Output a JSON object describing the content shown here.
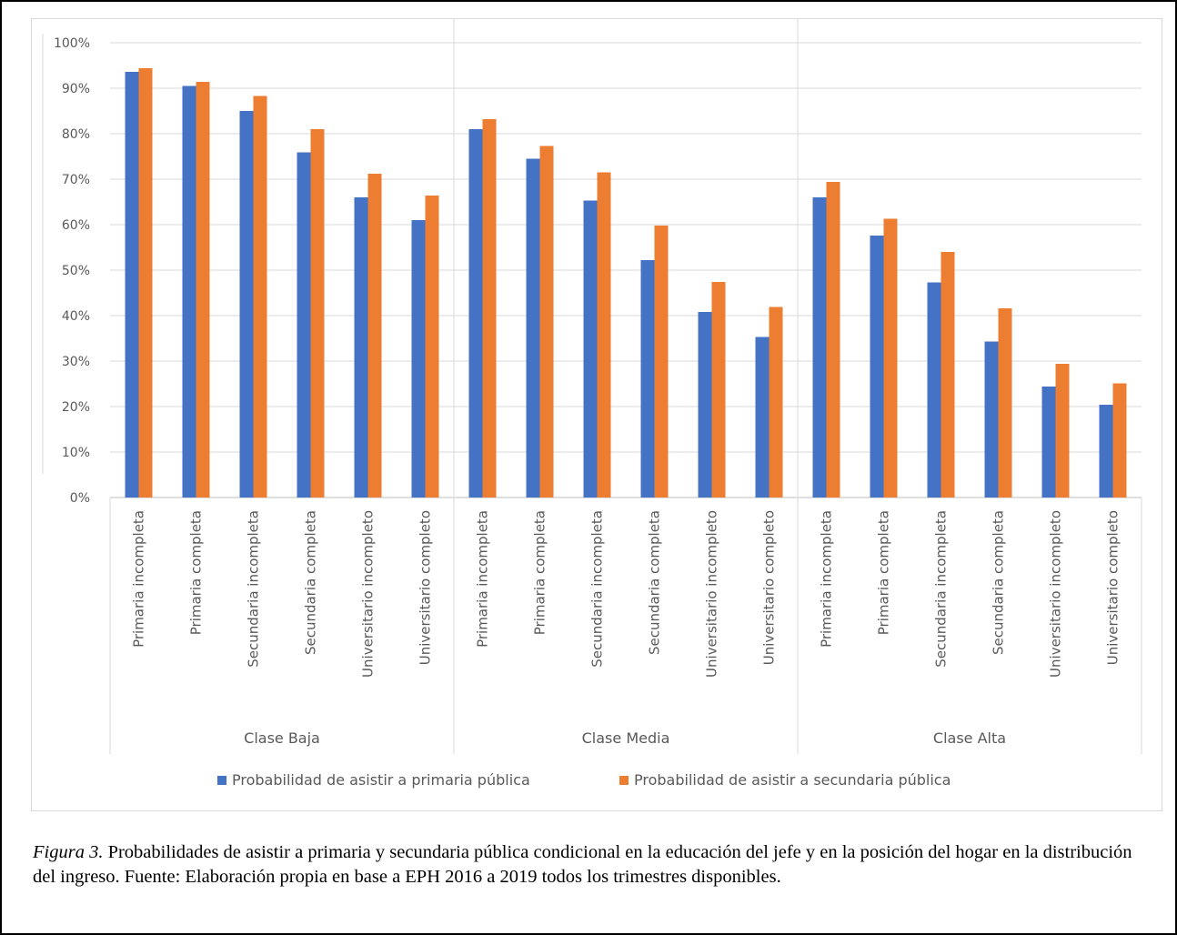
{
  "chart_data": {
    "type": "bar",
    "ylim": [
      0,
      100
    ],
    "yticks": [
      "0%",
      "10%",
      "20%",
      "30%",
      "40%",
      "50%",
      "60%",
      "70%",
      "80%",
      "90%",
      "100%"
    ],
    "groups": [
      {
        "name": "Clase Baja",
        "categories": [
          "Primaria incompleta",
          "Primaria completa",
          "Secundaria incompleta",
          "Secundaria completa",
          "Universitario incompleto",
          "Universitario completo"
        ]
      },
      {
        "name": "Clase Media",
        "categories": [
          "Primaria incompleta",
          "Primaria completa",
          "Secundaria incompleta",
          "Secundaria completa",
          "Universitario incompleto",
          "Universitario completo"
        ]
      },
      {
        "name": "Clase Alta",
        "categories": [
          "Primaria incompleta",
          "Primaria completa",
          "Secundaria incompleta",
          "Secundaria completa",
          "Universitario incompleto",
          "Universitario completo"
        ]
      }
    ],
    "series": [
      {
        "name": "Probabilidad de asistir a primaria pública",
        "color": "#4472c4",
        "values": [
          93.6,
          90.5,
          85.0,
          75.9,
          66.0,
          61.0,
          81.0,
          74.5,
          65.3,
          52.2,
          40.8,
          35.3,
          66.0,
          57.6,
          47.3,
          34.3,
          24.4,
          20.4
        ]
      },
      {
        "name": "Probabilidad de asistir a secundaria pública",
        "color": "#ed7d31",
        "values": [
          94.4,
          91.4,
          88.3,
          81.0,
          71.2,
          66.4,
          83.2,
          77.3,
          71.5,
          59.8,
          47.4,
          41.9,
          69.4,
          61.3,
          54.0,
          41.6,
          29.4,
          25.1
        ]
      }
    ],
    "legend_position": "bottom",
    "grid": true
  },
  "caption": {
    "label": "Figura 3.",
    "text": " Probabilidades de asistir a primaria y secundaria pública condicional en la educación del jefe y en la posición del hogar en la distribución del ingreso. Fuente: Elaboración propia en base a EPH 2016 a 2019 todos los trimestres disponibles."
  }
}
